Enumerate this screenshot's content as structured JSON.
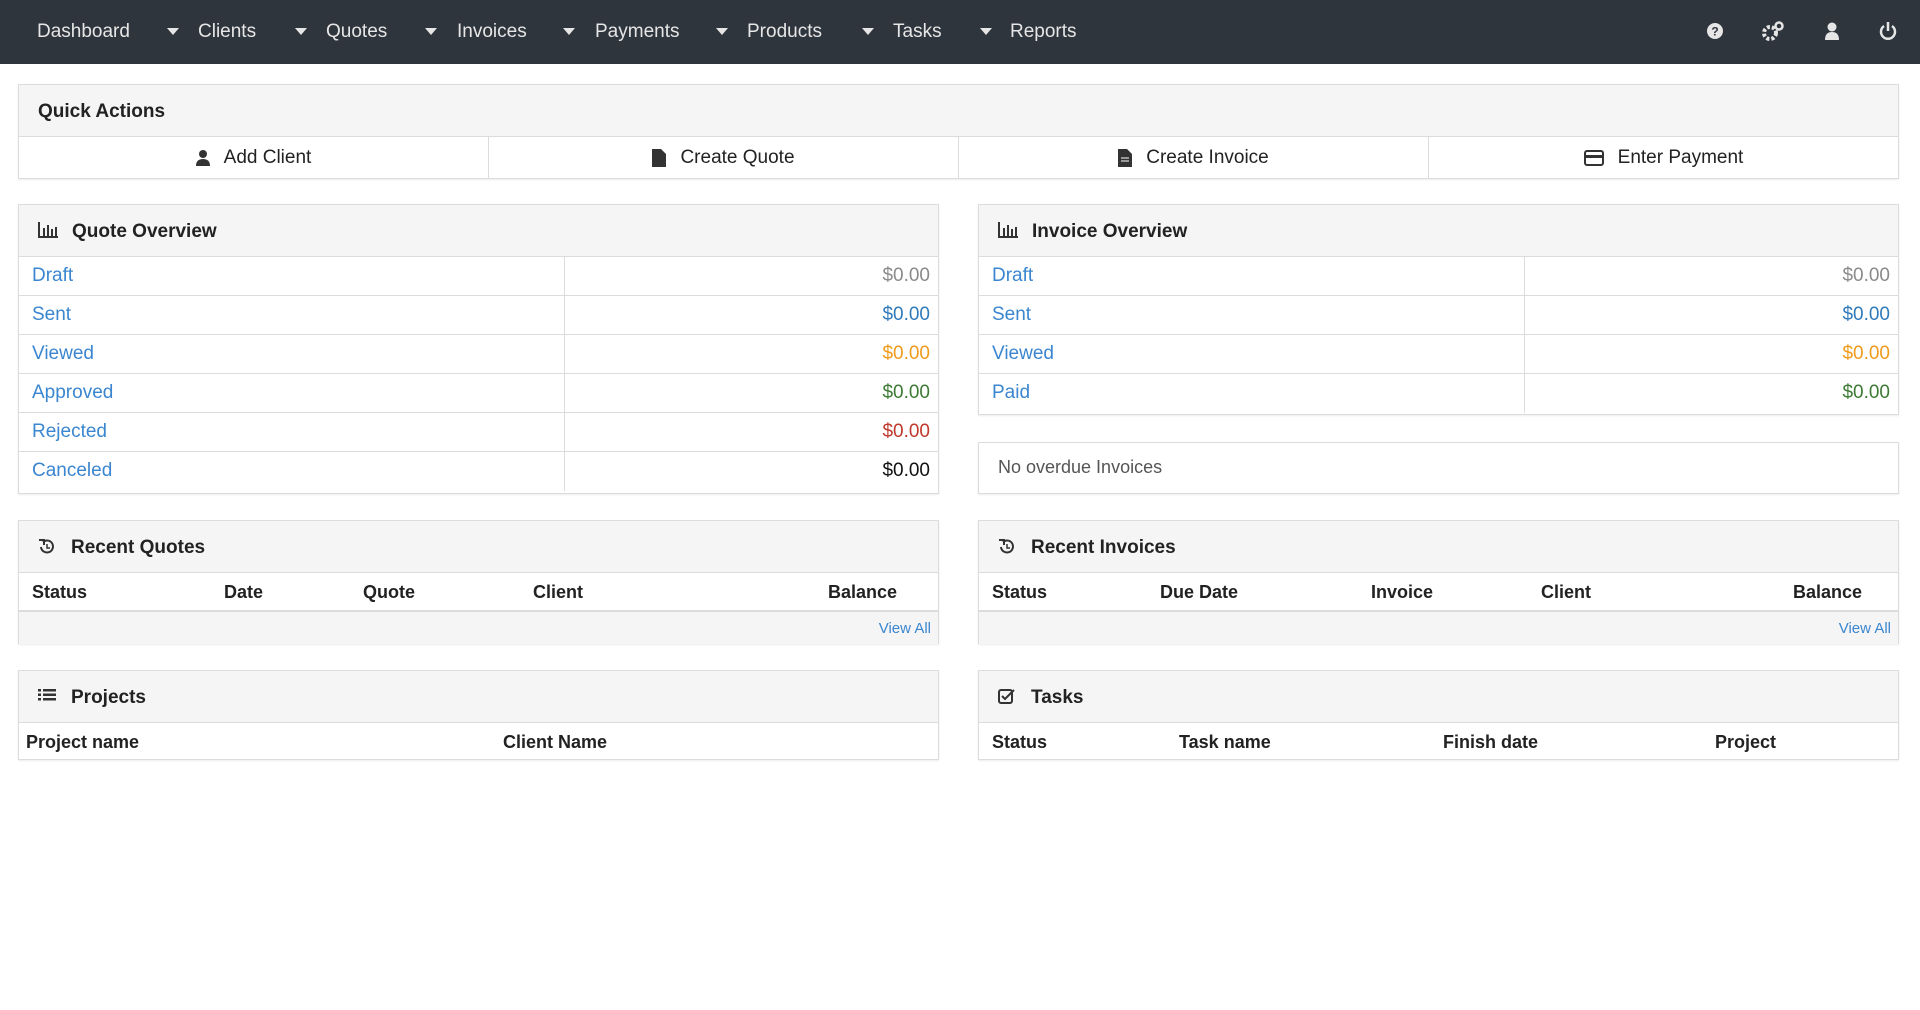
{
  "nav": {
    "items": [
      "Dashboard",
      "Clients",
      "Quotes",
      "Invoices",
      "Payments",
      "Products",
      "Tasks",
      "Reports"
    ]
  },
  "quick_actions": {
    "title": "Quick Actions",
    "buttons": [
      "Add Client",
      "Create Quote",
      "Create Invoice",
      "Enter Payment"
    ]
  },
  "quote_overview": {
    "title": "Quote Overview",
    "rows": [
      {
        "label": "Draft",
        "amount": "$0.00"
      },
      {
        "label": "Sent",
        "amount": "$0.00"
      },
      {
        "label": "Viewed",
        "amount": "$0.00"
      },
      {
        "label": "Approved",
        "amount": "$0.00"
      },
      {
        "label": "Rejected",
        "amount": "$0.00"
      },
      {
        "label": "Canceled",
        "amount": "$0.00"
      }
    ]
  },
  "invoice_overview": {
    "title": "Invoice Overview",
    "rows": [
      {
        "label": "Draft",
        "amount": "$0.00"
      },
      {
        "label": "Sent",
        "amount": "$0.00"
      },
      {
        "label": "Viewed",
        "amount": "$0.00"
      },
      {
        "label": "Paid",
        "amount": "$0.00"
      }
    ],
    "notice": "No overdue Invoices"
  },
  "recent_quotes": {
    "title": "Recent Quotes",
    "columns": [
      "Status",
      "Date",
      "Quote",
      "Client",
      "Balance"
    ],
    "footer_link": "View All"
  },
  "recent_invoices": {
    "title": "Recent Invoices",
    "columns": [
      "Status",
      "Due Date",
      "Invoice",
      "Client",
      "Balance"
    ],
    "footer_link": "View All"
  },
  "projects": {
    "title": "Projects",
    "columns": [
      "Project name",
      "Client Name"
    ]
  },
  "tasks": {
    "title": "Tasks",
    "columns": [
      "Status",
      "Task name",
      "Finish date",
      "Project"
    ]
  }
}
